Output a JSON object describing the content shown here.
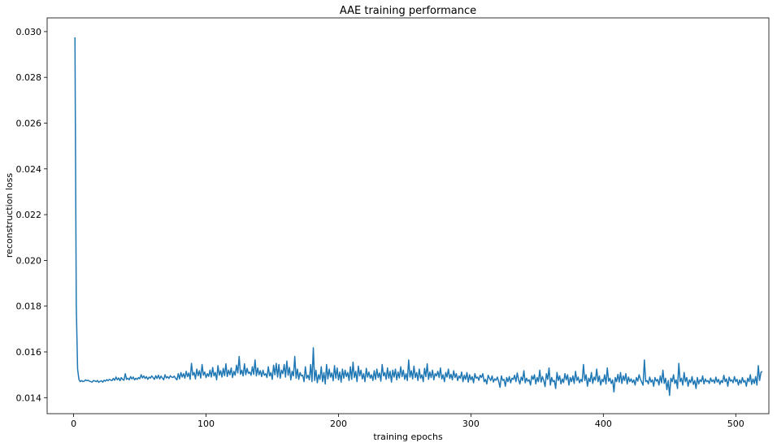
{
  "chart_data": {
    "type": "line",
    "title": "AAE training performance",
    "xlabel": "training epochs",
    "ylabel": "reconstruction loss",
    "xlim": [
      -20,
      525
    ],
    "ylim": [
      0.0133,
      0.0306
    ],
    "xticks": [
      0,
      100,
      200,
      300,
      400,
      500
    ],
    "xtick_labels": [
      "0",
      "100",
      "200",
      "300",
      "400",
      "500"
    ],
    "yticks": [
      0.014,
      0.016,
      0.018,
      0.02,
      0.022,
      0.024,
      0.026,
      0.028,
      0.03
    ],
    "ytick_labels": [
      "0.014",
      "0.016",
      "0.018",
      "0.020",
      "0.022",
      "0.024",
      "0.026",
      "0.028",
      "0.030"
    ],
    "grid": false,
    "legend": "none",
    "series": [
      {
        "color": "#1f77b4",
        "x_start": 1,
        "x_step": 1,
        "values": [
          0.02975,
          0.018,
          0.01525,
          0.0148,
          0.0147,
          0.01475,
          0.0147,
          0.01472,
          0.01478,
          0.01474,
          0.01476,
          0.01472,
          0.0147,
          0.01468,
          0.01475,
          0.01473,
          0.0147,
          0.01475,
          0.01467,
          0.01472,
          0.01474,
          0.01468,
          0.01476,
          0.01472,
          0.01479,
          0.01474,
          0.0148,
          0.01477,
          0.01475,
          0.01484,
          0.01476,
          0.0149,
          0.01478,
          0.01486,
          0.01474,
          0.01488,
          0.0148,
          0.01476,
          0.01505,
          0.0148,
          0.01485,
          0.01478,
          0.01492,
          0.01482,
          0.0149,
          0.01478,
          0.01485,
          0.0148,
          0.01488,
          0.01483,
          0.015,
          0.01486,
          0.01495,
          0.01484,
          0.01492,
          0.0148,
          0.0149,
          0.01485,
          0.01495,
          0.01488,
          0.0148,
          0.01496,
          0.01484,
          0.01498,
          0.01482,
          0.01494,
          0.01486,
          0.01478,
          0.015,
          0.01486,
          0.01492,
          0.01484,
          0.01496,
          0.0149,
          0.01488,
          0.01494,
          0.01484,
          0.01478,
          0.01505,
          0.01482,
          0.0151,
          0.0149,
          0.01505,
          0.01485,
          0.01515,
          0.01492,
          0.01508,
          0.0148,
          0.0155,
          0.01498,
          0.0151,
          0.01482,
          0.01525,
          0.01496,
          0.01518,
          0.01486,
          0.01545,
          0.01498,
          0.01512,
          0.01488,
          0.01505,
          0.01493,
          0.0152,
          0.0149,
          0.01532,
          0.01495,
          0.0151,
          0.01478,
          0.0154,
          0.01498,
          0.01518,
          0.0149,
          0.01528,
          0.01496,
          0.01548,
          0.01492,
          0.0152,
          0.015,
          0.0153,
          0.01488,
          0.01515,
          0.01498,
          0.01542,
          0.01508,
          0.0158,
          0.01502,
          0.0152,
          0.01495,
          0.01548,
          0.015,
          0.01528,
          0.01506,
          0.01512,
          0.01498,
          0.01535,
          0.01502,
          0.01565,
          0.01495,
          0.0153,
          0.015,
          0.01518,
          0.01492,
          0.0152,
          0.01498,
          0.01505,
          0.01488,
          0.01535,
          0.01495,
          0.0151,
          0.0148,
          0.01542,
          0.015,
          0.0155,
          0.0149,
          0.01545,
          0.01485,
          0.0152,
          0.01505,
          0.01545,
          0.0149,
          0.0156,
          0.01498,
          0.01532,
          0.01478,
          0.01515,
          0.01495,
          0.0158,
          0.01485,
          0.01525,
          0.0148,
          0.0151,
          0.01495,
          0.01498,
          0.0147,
          0.01535,
          0.01485,
          0.01498,
          0.01478,
          0.01545,
          0.0147,
          0.01618,
          0.01475,
          0.0152,
          0.01465,
          0.015,
          0.0148,
          0.01535,
          0.0147,
          0.0151,
          0.0146,
          0.01545,
          0.01482,
          0.01525,
          0.0149,
          0.01508,
          0.01474,
          0.0154,
          0.01485,
          0.0153,
          0.01478,
          0.01512,
          0.01468,
          0.01525,
          0.01485,
          0.0152,
          0.01492,
          0.0151,
          0.01475,
          0.01535,
          0.0148,
          0.01555,
          0.01488,
          0.01515,
          0.0147,
          0.01538,
          0.01495,
          0.0152,
          0.01482,
          0.01505,
          0.0147,
          0.01528,
          0.0149,
          0.01512,
          0.01485,
          0.015,
          0.01475,
          0.01518,
          0.0148,
          0.01525,
          0.01488,
          0.01508,
          0.01472,
          0.01545,
          0.01495,
          0.0151,
          0.0148,
          0.0153,
          0.01485,
          0.01515,
          0.01468,
          0.0152,
          0.0149,
          0.01525,
          0.01478,
          0.01512,
          0.01486,
          0.01535,
          0.01492,
          0.0152,
          0.0148,
          0.01505,
          0.01475,
          0.01565,
          0.0149,
          0.01518,
          0.01482,
          0.01538,
          0.01488,
          0.0151,
          0.01475,
          0.01525,
          0.01485,
          0.015,
          0.0147,
          0.01528,
          0.01492,
          0.01548,
          0.0148,
          0.01512,
          0.01488,
          0.0152,
          0.01478,
          0.01505,
          0.01495,
          0.01515,
          0.01488,
          0.0153,
          0.01482,
          0.015,
          0.0147,
          0.0151,
          0.0149,
          0.01525,
          0.01484,
          0.01502,
          0.01478,
          0.01518,
          0.01488,
          0.01505,
          0.01475,
          0.01495,
          0.01485,
          0.01512,
          0.0147,
          0.01498,
          0.0148,
          0.0151,
          0.01468,
          0.015,
          0.01478,
          0.01492,
          0.01465,
          0.01505,
          0.01485,
          0.0149,
          0.01476,
          0.01498,
          0.01488,
          0.01505,
          0.0147,
          0.0148,
          0.0146,
          0.01498,
          0.01485,
          0.01475,
          0.01495,
          0.01468,
          0.01482,
          0.01476,
          0.0149,
          0.0147,
          0.01445,
          0.01495,
          0.01475,
          0.0148,
          0.0145,
          0.01488,
          0.0147,
          0.01492,
          0.01465,
          0.01485,
          0.0148,
          0.01498,
          0.0147,
          0.01508,
          0.01478,
          0.0146,
          0.0149,
          0.01475,
          0.01518,
          0.01465,
          0.01485,
          0.01472,
          0.01478,
          0.01455,
          0.01495,
          0.0148,
          0.015,
          0.0146,
          0.01488,
          0.0147,
          0.0152,
          0.01468,
          0.01492,
          0.01475,
          0.01448,
          0.01505,
          0.0148,
          0.0153,
          0.01455,
          0.01488,
          0.0147,
          0.01475,
          0.0144,
          0.0151,
          0.01475,
          0.01495,
          0.0146,
          0.01482,
          0.01466,
          0.01505,
          0.01478,
          0.015,
          0.01455,
          0.01488,
          0.0147,
          0.01495,
          0.01462,
          0.01515,
          0.01475,
          0.0149,
          0.01465,
          0.0148,
          0.0147,
          0.01545,
          0.01475,
          0.015,
          0.0145,
          0.01485,
          0.0147,
          0.0151,
          0.01462,
          0.0149,
          0.01476,
          0.01525,
          0.0147,
          0.01495,
          0.01455,
          0.0148,
          0.0147,
          0.015,
          0.0146,
          0.0153,
          0.01472,
          0.01485,
          0.01462,
          0.01478,
          0.01425,
          0.01488,
          0.0147,
          0.01502,
          0.01468,
          0.0151,
          0.01462,
          0.01495,
          0.01475,
          0.01505,
          0.0146,
          0.0149,
          0.0147,
          0.01482,
          0.01466,
          0.01478,
          0.01455,
          0.01488,
          0.01472,
          0.015,
          0.0148,
          0.01468,
          0.01455,
          0.01565,
          0.0147,
          0.01475,
          0.0146,
          0.0149,
          0.01468,
          0.01478,
          0.0145,
          0.01488,
          0.01472,
          0.0148,
          0.01455,
          0.01495,
          0.01465,
          0.0152,
          0.01462,
          0.01485,
          0.01435,
          0.01475,
          0.0141,
          0.01485,
          0.0147,
          0.015,
          0.01462,
          0.01478,
          0.0144,
          0.0155,
          0.0147,
          0.01485,
          0.01455,
          0.0151,
          0.0147,
          0.01488,
          0.0145,
          0.01478,
          0.01466,
          0.01492,
          0.01458,
          0.01475,
          0.0144,
          0.01488,
          0.0146,
          0.01478,
          0.0147,
          0.01495,
          0.0146,
          0.01482,
          0.0147,
          0.01475,
          0.01462,
          0.01486,
          0.0147,
          0.01478,
          0.01464,
          0.0149,
          0.01468,
          0.0148,
          0.01458,
          0.01475,
          0.01466,
          0.01498,
          0.0147,
          0.01482,
          0.0145,
          0.0149,
          0.01472,
          0.01478,
          0.01465,
          0.01492,
          0.0147,
          0.0148,
          0.01455,
          0.01478,
          0.01462,
          0.01488,
          0.01468,
          0.01475,
          0.0145,
          0.01485,
          0.0147,
          0.015,
          0.01458,
          0.01482,
          0.01462,
          0.01492,
          0.01455,
          0.0154,
          0.01475,
          0.0151,
          0.01515
        ]
      }
    ]
  }
}
